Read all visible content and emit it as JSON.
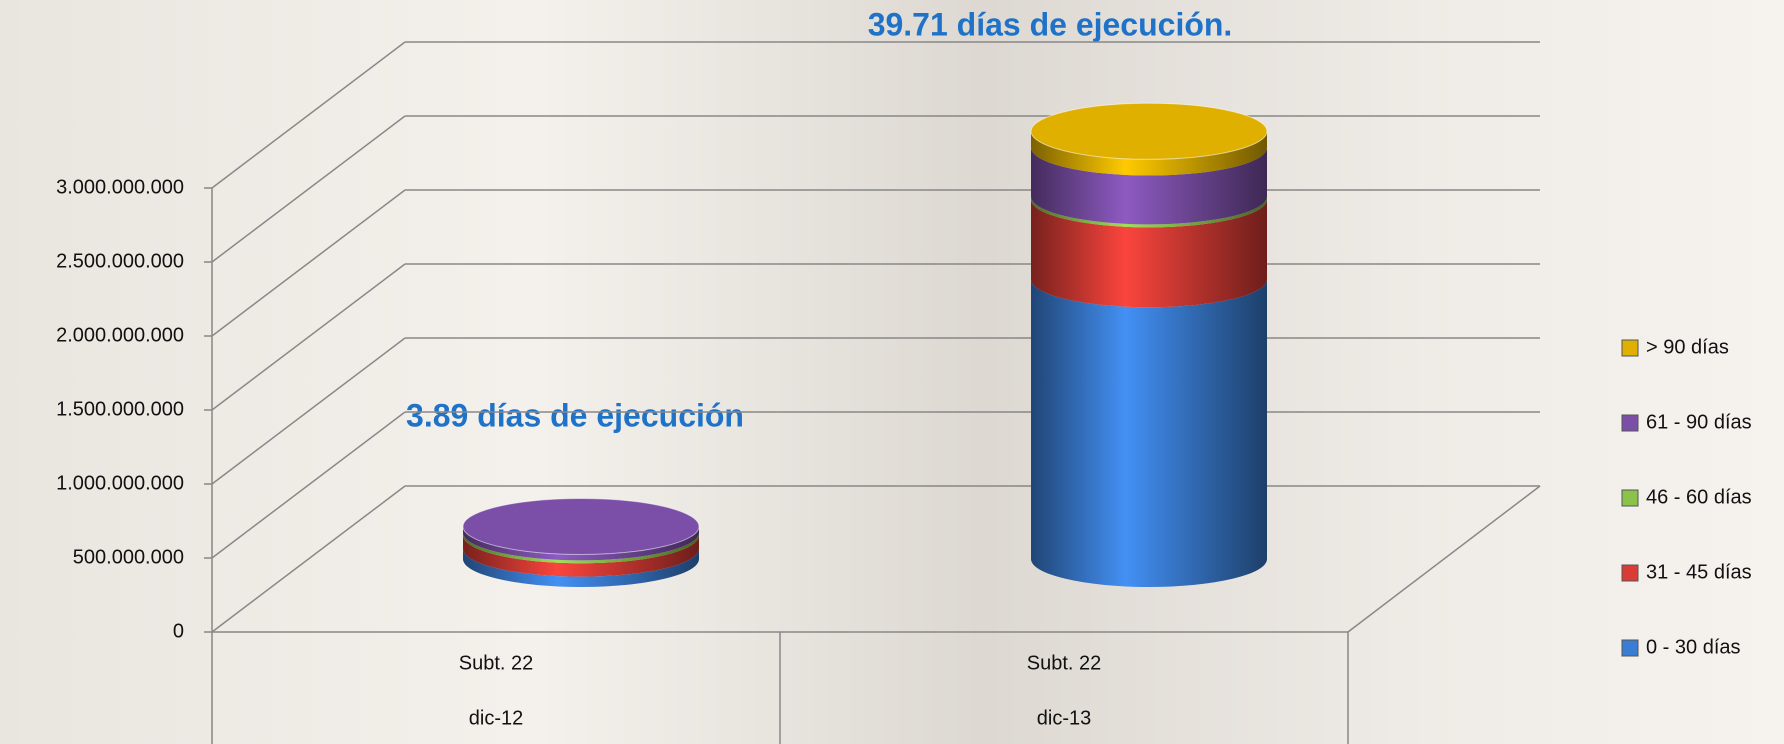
{
  "chart_data": {
    "type": "bar",
    "annotations": [
      "39.71 días de ejecución.",
      "3.89 días de ejecución"
    ],
    "categories": [
      [
        "Subt. 22",
        "dic-12"
      ],
      [
        "Subt. 22",
        "dic-13"
      ]
    ],
    "series": [
      {
        "name": "0 - 30 días",
        "color": "#3a7dd4",
        "values": [
          70000000,
          1890000000
        ]
      },
      {
        "name": "31 - 45 días",
        "color": "#d93c35",
        "values": [
          90000000,
          540000000
        ]
      },
      {
        "name": "46 - 60 días",
        "color": "#8bc34a",
        "values": [
          20000000,
          20000000
        ]
      },
      {
        "name": "61 - 90 días",
        "color": "#7b4fa8",
        "values": [
          40000000,
          330000000
        ]
      },
      {
        "name": "> 90 días",
        "color": "#e0b000",
        "values": [
          0,
          110000000
        ]
      }
    ],
    "ylim": [
      0,
      3000000000
    ],
    "yticks": [
      0,
      {
        "value": 500000000,
        "label": "500.000.000"
      },
      {
        "value": 1000000000,
        "label": "1.000.000.000"
      },
      {
        "value": 1500000000,
        "label": "1.500.000.000"
      },
      {
        "value": 2000000000,
        "label": "2.000.000.000"
      },
      {
        "value": 2500000000,
        "label": "2.500.000.000"
      },
      {
        "value": 3000000000,
        "label": "3.000.000.000"
      }
    ],
    "grid": true,
    "legend": "right"
  }
}
